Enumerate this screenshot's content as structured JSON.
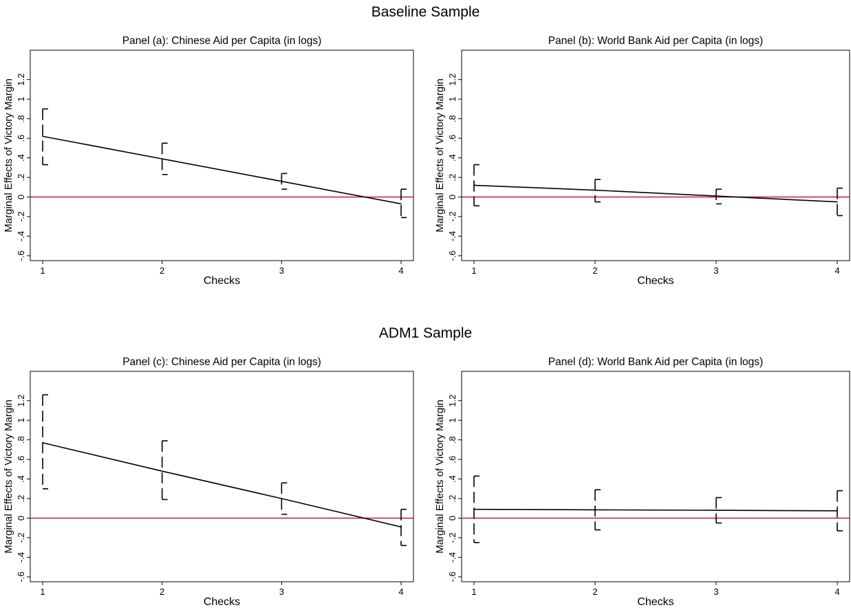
{
  "sections": [
    {
      "title": "Baseline Sample"
    },
    {
      "title": "ADM1 Sample"
    }
  ],
  "colors": {
    "zero_line": "#c8163d",
    "line": "#000000",
    "axis": "#000000"
  },
  "chart_data": [
    {
      "type": "line",
      "title": "Panel (a): Chinese Aid per Capita (in logs)",
      "xlabel": "Checks",
      "ylabel": "Marginal Effects of Victory Margin",
      "x": [
        1,
        2,
        3,
        4
      ],
      "xticks": [
        "1",
        "2",
        "3",
        "4"
      ],
      "yticks": [
        -0.6,
        -0.4,
        -0.2,
        0,
        0.2,
        0.4,
        0.6,
        0.8,
        1,
        1.2
      ],
      "ytick_labels": [
        "-.6",
        "-.4",
        "-.2",
        "0",
        ".2",
        ".4",
        ".6",
        ".8",
        "1",
        "1.2"
      ],
      "ylim": [
        -0.65,
        1.5
      ],
      "series": [
        {
          "values": [
            0.62,
            0.39,
            0.16,
            -0.07
          ]
        }
      ],
      "ci_upper": [
        0.9,
        0.55,
        0.24,
        0.08
      ],
      "ci_lower": [
        0.33,
        0.23,
        0.08,
        -0.21
      ],
      "reference_line": 0
    },
    {
      "type": "line",
      "title": "Panel (b): World Bank Aid per Capita (in logs)",
      "xlabel": "Checks",
      "ylabel": "Marginal Effects of Victory Margin",
      "x": [
        1,
        2,
        3,
        4
      ],
      "xticks": [
        "1",
        "2",
        "3",
        "4"
      ],
      "yticks": [
        -0.6,
        -0.4,
        -0.2,
        0,
        0.2,
        0.4,
        0.6,
        0.8,
        1,
        1.2
      ],
      "ytick_labels": [
        "-.6",
        "-.4",
        "-.2",
        "0",
        ".2",
        ".4",
        ".6",
        ".8",
        "1",
        "1.2"
      ],
      "ylim": [
        -0.65,
        1.5
      ],
      "series": [
        {
          "values": [
            0.12,
            0.07,
            0.01,
            -0.05
          ]
        }
      ],
      "ci_upper": [
        0.33,
        0.18,
        0.08,
        0.09
      ],
      "ci_lower": [
        -0.09,
        -0.05,
        -0.07,
        -0.19
      ],
      "reference_line": 0
    },
    {
      "type": "line",
      "title": "Panel (c): Chinese Aid per Capita (in logs)",
      "xlabel": "Checks",
      "ylabel": "Marginal Effects of Victory Margin",
      "x": [
        1,
        2,
        3,
        4
      ],
      "xticks": [
        "1",
        "2",
        "3",
        "4"
      ],
      "yticks": [
        -0.6,
        -0.4,
        -0.2,
        0,
        0.2,
        0.4,
        0.6,
        0.8,
        1,
        1.2
      ],
      "ytick_labels": [
        "-.6",
        "-.4",
        "-.2",
        "0",
        ".2",
        ".4",
        ".6",
        ".8",
        "1",
        "1.2"
      ],
      "ylim": [
        -0.65,
        1.5
      ],
      "series": [
        {
          "values": [
            0.77,
            0.48,
            0.2,
            -0.09
          ]
        }
      ],
      "ci_upper": [
        1.26,
        0.79,
        0.36,
        0.09
      ],
      "ci_lower": [
        0.3,
        0.19,
        0.04,
        -0.28
      ],
      "reference_line": 0
    },
    {
      "type": "line",
      "title": "Panel (d): World Bank Aid per Capita (in logs)",
      "xlabel": "Checks",
      "ylabel": "Marginal Effects of Victory Margin",
      "x": [
        1,
        2,
        3,
        4
      ],
      "xticks": [
        "1",
        "2",
        "3",
        "4"
      ],
      "yticks": [
        -0.6,
        -0.4,
        -0.2,
        0,
        0.2,
        0.4,
        0.6,
        0.8,
        1,
        1.2
      ],
      "ytick_labels": [
        "-.6",
        "-.4",
        "-.2",
        "0",
        ".2",
        ".4",
        ".6",
        ".8",
        "1",
        "1.2"
      ],
      "ylim": [
        -0.65,
        1.5
      ],
      "series": [
        {
          "values": [
            0.09,
            0.085,
            0.08,
            0.075
          ]
        }
      ],
      "ci_upper": [
        0.43,
        0.29,
        0.21,
        0.28
      ],
      "ci_lower": [
        -0.25,
        -0.12,
        -0.05,
        -0.13
      ],
      "reference_line": 0
    }
  ]
}
